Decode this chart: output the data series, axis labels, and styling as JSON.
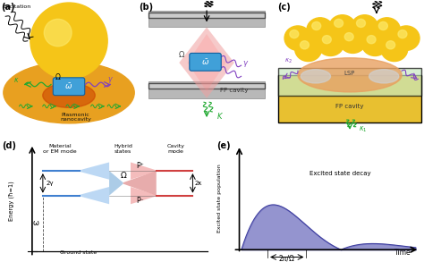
{
  "bg_color": "#ffffff",
  "panel_labels": [
    "(a)",
    "(b)",
    "(c)",
    "(d)",
    "(e)"
  ],
  "label_fontsize": 7,
  "label_fontweight": "bold",
  "d_annotations": {
    "ylabel": "Energy (ħ=1)",
    "xlabel_ground": "Ground state",
    "mat_label": "Material\nor EM mode",
    "hybrid_label": "Hybrid\nstates",
    "cavity_label": "Cavity\nmode",
    "two_gamma": "2γ",
    "omega_lower": "ω",
    "two_kappa": "2κ",
    "P_plus": "P⁺",
    "P_minus": "P⁻",
    "Omega": "Ω"
  },
  "e_annotations": {
    "ylabel": "Excited state population",
    "xlabel": "Time",
    "brace_label": "2π/Ω",
    "title": "Excited state decay"
  },
  "colors": {
    "gold_sphere": "#f5c518",
    "gold_sphere_highlight": "#fde96a",
    "gold_substrate": "#e8a020",
    "gold_substrate_dark": "#c97010",
    "red_spot": "#cc4400",
    "mirror_gray": "#b8b8b8",
    "mirror_gray2": "#d8d8d8",
    "beam_pink": "#f0a0a0",
    "mol_blue": "#40a0d8",
    "mol_blue_dark": "#1060a0",
    "green_arrow": "#20a830",
    "purple_arrow": "#8040c0",
    "blue_energy": "#4080d0",
    "red_energy": "#e06060",
    "decay_fill": "#7070c0",
    "decay_line": "#4040a0",
    "fp_green": "#c8e8c0",
    "lsp_orange": "#e8a060"
  }
}
